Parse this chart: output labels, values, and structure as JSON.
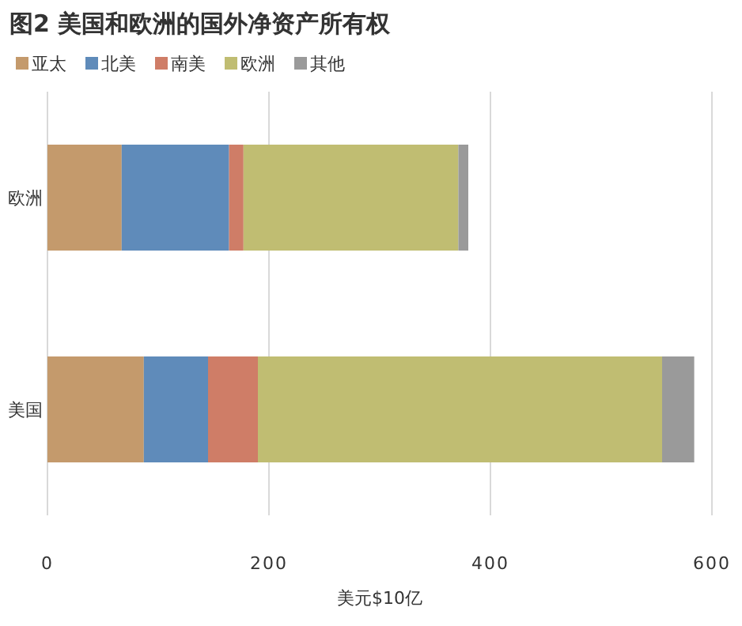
{
  "chart_data": {
    "type": "bar",
    "title": "图2 美国和欧洲的国外净资产所有权",
    "xlabel": "美元$10亿",
    "orientation": "horizontal",
    "stacked": true,
    "categories": [
      "欧洲",
      "美国"
    ],
    "series": [
      {
        "name": "亚太",
        "color": "#c49a6c",
        "values": [
          67,
          87
        ]
      },
      {
        "name": "北美",
        "color": "#5f8bba",
        "values": [
          97,
          58
        ]
      },
      {
        "name": "南美",
        "color": "#cf7d67",
        "values": [
          13,
          45
        ]
      },
      {
        "name": "欧洲",
        "color": "#c0bd72",
        "values": [
          194,
          365
        ]
      },
      {
        "name": "其他",
        "color": "#9a9a9a",
        "values": [
          9,
          29
        ]
      }
    ],
    "xlim": [
      0,
      600
    ],
    "xticks": [
      0,
      200,
      400,
      600
    ],
    "grid": "x",
    "legend": "top left"
  }
}
